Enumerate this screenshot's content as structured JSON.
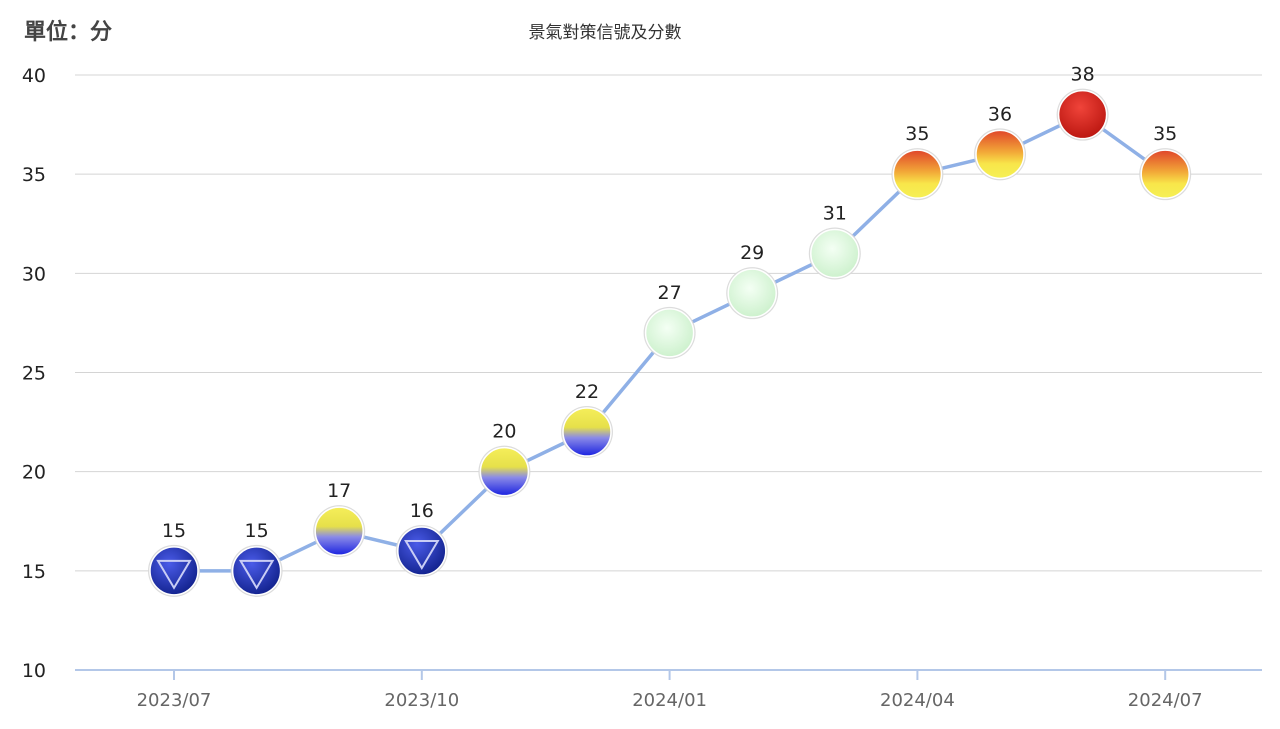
{
  "unit_label": "單位：分",
  "chart_data": {
    "type": "line",
    "title": "景氣對策信號及分數",
    "x": [
      "2023/07",
      "2023/08",
      "2023/09",
      "2023/10",
      "2023/11",
      "2023/12",
      "2024/01",
      "2024/02",
      "2024/03",
      "2024/04",
      "2024/05",
      "2024/06",
      "2024/07"
    ],
    "values": [
      15,
      15,
      17,
      16,
      20,
      22,
      27,
      29,
      31,
      35,
      36,
      38,
      35
    ],
    "signals": [
      "blue",
      "blue",
      "yellow-blue",
      "blue",
      "yellow-blue",
      "yellow-blue",
      "green",
      "green",
      "green",
      "yellow-red",
      "yellow-red",
      "red",
      "yellow-red"
    ],
    "x_tick_labels": [
      "2023/07",
      "2023/10",
      "2024/01",
      "2024/04",
      "2024/07"
    ],
    "y_ticks": [
      10,
      15,
      20,
      25,
      30,
      35,
      40
    ],
    "ylim": [
      10,
      40
    ],
    "grid": true,
    "line_color": "#8fb0e6",
    "signal_colors": {
      "blue": "#1f2fc0",
      "yellow-blue": "#f0e83a",
      "green": "#d9f7d9",
      "yellow-red": "#f4d23a",
      "red": "#d9261c"
    }
  }
}
